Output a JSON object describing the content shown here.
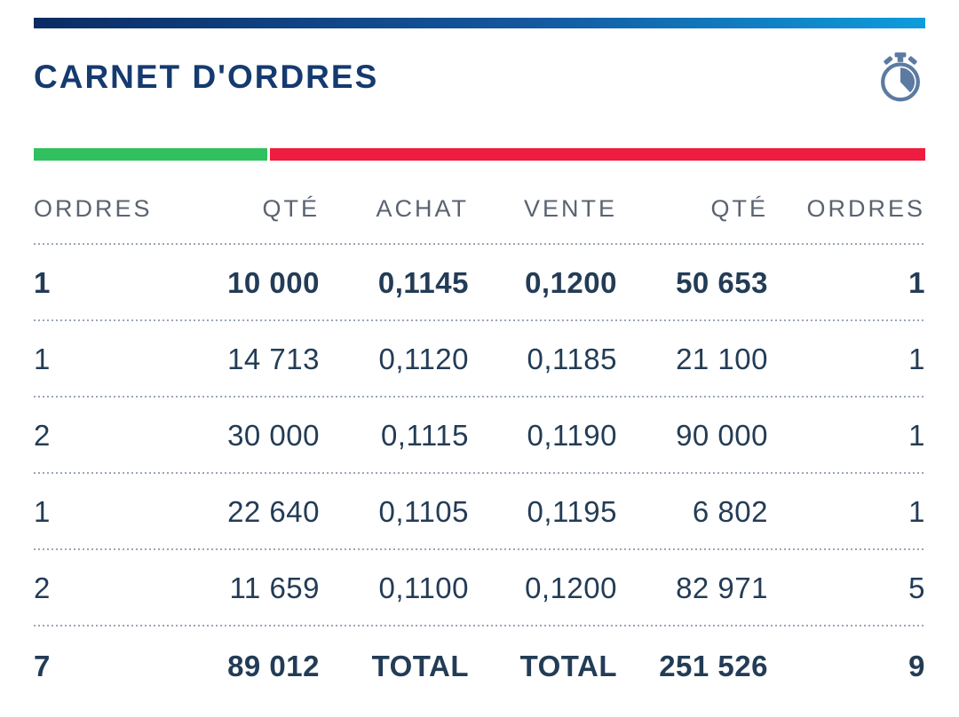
{
  "header": {
    "title": "CARNET D'ORDRES",
    "timer_icon": "stopwatch-icon"
  },
  "depth_bar": {
    "buy_percent": 26.2,
    "sell_percent": 73.8
  },
  "table": {
    "columns": [
      "ORDRES",
      "QTÉ",
      "ACHAT",
      "VENTE",
      "QTÉ",
      "ORDRES"
    ],
    "column_keys": [
      "bid-orders",
      "bid-qty",
      "bid-price",
      "ask-price",
      "ask-qty",
      "ask-orders"
    ],
    "rows": [
      [
        "1",
        "10 000",
        "0,1145",
        "0,1200",
        "50 653",
        "1"
      ],
      [
        "1",
        "14 713",
        "0,1120",
        "0,1185",
        "21 100",
        "1"
      ],
      [
        "2",
        "30 000",
        "0,1115",
        "0,1190",
        "90 000",
        "1"
      ],
      [
        "1",
        "22 640",
        "0,1105",
        "0,1195",
        "6 802",
        "1"
      ],
      [
        "2",
        "11 659",
        "0,1100",
        "0,1200",
        "82 971",
        "5"
      ]
    ],
    "total": [
      "7",
      "89 012",
      "TOTAL",
      "TOTAL",
      "251 526",
      "9"
    ],
    "best_row_index": 0
  },
  "colors": {
    "accent_bar_start": "#0b2c64",
    "accent_bar_end": "#0e9cdc",
    "buy_green": "#31c05e",
    "sell_red": "#ee1c3e",
    "title_navy": "#153a70",
    "header_gray": "#5a6370",
    "data_navy": "#233c56",
    "icon_slate": "#5c7ba2",
    "dotted_separator": "#9aa7b8"
  }
}
